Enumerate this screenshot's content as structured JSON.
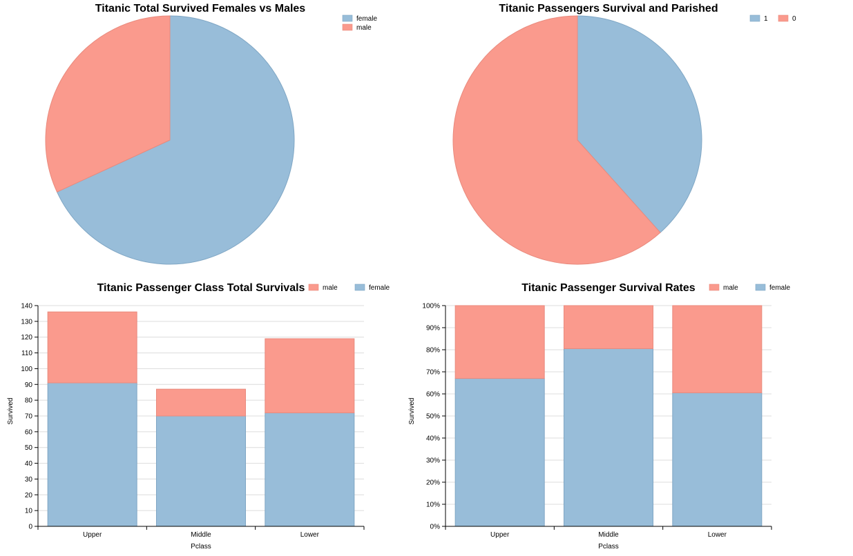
{
  "colors": {
    "blue": "#98bdd9",
    "blue_stroke": "#7fa6c4",
    "red": "#fa9a8d",
    "red_stroke": "#e98a7d"
  },
  "chart_data": [
    {
      "type": "pie",
      "title": "Titanic Total Survived Females vs Males",
      "slices": [
        {
          "label": "female",
          "value": 233,
          "color": "#98bdd9"
        },
        {
          "label": "male",
          "value": 109,
          "color": "#fa9a8d"
        }
      ],
      "legend": [
        "female",
        "male"
      ],
      "legend_position": "top-right"
    },
    {
      "type": "pie",
      "title": "Titanic Passengers Survival and Parished",
      "slices": [
        {
          "label": "1",
          "value": 342,
          "color": "#98bdd9"
        },
        {
          "label": "0",
          "value": 549,
          "color": "#fa9a8d"
        }
      ],
      "legend": [
        "1",
        "0"
      ],
      "legend_position": "top-right"
    },
    {
      "type": "bar",
      "stacked": true,
      "title": "Titanic Passenger Class Total Survivals",
      "categories": [
        "Upper",
        "Middle",
        "Lower"
      ],
      "series": [
        {
          "name": "female",
          "values": [
            91,
            70,
            72
          ],
          "color": "#98bdd9"
        },
        {
          "name": "male",
          "values": [
            45,
            17,
            47
          ],
          "color": "#fa9a8d"
        }
      ],
      "legend": [
        "male",
        "female"
      ],
      "xlabel": "Pclass",
      "ylabel": "Survived",
      "ylim": [
        0,
        140
      ],
      "yticks": [
        0,
        10,
        20,
        30,
        40,
        50,
        60,
        70,
        80,
        90,
        100,
        110,
        120,
        130,
        140
      ],
      "grid": true
    },
    {
      "type": "bar",
      "stacked": true,
      "title": "Titanic Passenger Survival Rates",
      "categories": [
        "Upper",
        "Middle",
        "Lower"
      ],
      "series": [
        {
          "name": "female",
          "values": [
            0.67,
            0.805,
            0.605
          ],
          "color": "#98bdd9"
        },
        {
          "name": "male",
          "values": [
            0.33,
            0.195,
            0.395
          ],
          "color": "#fa9a8d"
        }
      ],
      "legend": [
        "male",
        "female"
      ],
      "xlabel": "Pclass",
      "ylabel": "Survived",
      "ylim": [
        0,
        1
      ],
      "yticks": [
        "0%",
        "10%",
        "20%",
        "30%",
        "40%",
        "50%",
        "60%",
        "70%",
        "80%",
        "90%",
        "100%"
      ],
      "grid": true
    }
  ]
}
